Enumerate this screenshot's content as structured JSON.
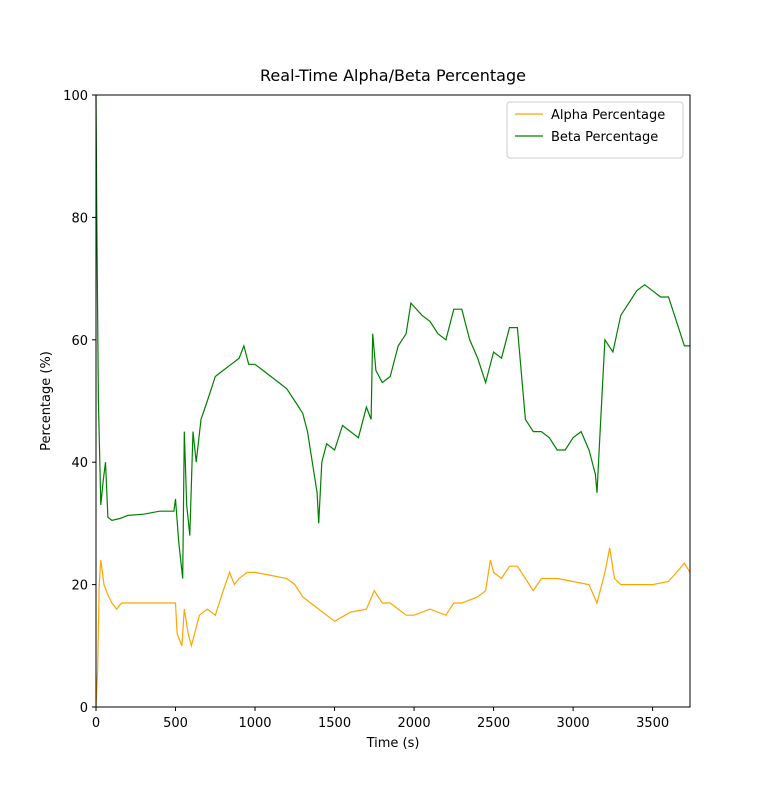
{
  "chart_data": {
    "type": "line",
    "title": "Real-Time Alpha/Beta Percentage",
    "x_label": "Time (s)",
    "y_label": "Percentage (%)",
    "xlim": [
      0,
      3735
    ],
    "ylim": [
      0,
      100
    ],
    "xticks": [
      0,
      500,
      1000,
      1500,
      2000,
      2500,
      3000,
      3500
    ],
    "yticks": [
      0,
      20,
      40,
      60,
      80,
      100
    ],
    "legend": "upper right",
    "series": [
      {
        "name": "Alpha Percentage",
        "color": "#ffa500",
        "x": [
          0,
          10,
          20,
          30,
          50,
          80,
          100,
          130,
          160,
          250,
          350,
          500,
          510,
          540,
          555,
          580,
          600,
          650,
          700,
          750,
          800,
          840,
          870,
          900,
          950,
          1000,
          1100,
          1200,
          1250,
          1300,
          1350,
          1400,
          1450,
          1500,
          1600,
          1700,
          1750,
          1800,
          1850,
          1900,
          1950,
          2000,
          2100,
          2200,
          2250,
          2300,
          2400,
          2450,
          2480,
          2500,
          2550,
          2600,
          2650,
          2700,
          2750,
          2800,
          2900,
          3000,
          3100,
          3150,
          3200,
          3230,
          3260,
          3300,
          3400,
          3500,
          3600,
          3650,
          3700,
          3735
        ],
        "values": [
          0,
          6,
          20,
          24,
          20,
          18,
          17,
          16,
          17,
          17,
          17,
          17,
          12,
          10,
          16,
          12,
          10,
          15,
          16,
          15,
          19,
          22,
          20,
          21,
          22,
          22,
          21.5,
          21,
          20,
          18,
          17,
          16,
          15,
          14,
          15.5,
          16,
          19,
          17,
          17,
          16,
          15,
          15,
          16,
          15,
          17,
          17,
          18,
          19,
          24,
          22,
          21,
          23,
          23,
          21,
          19,
          21,
          21,
          20.5,
          20,
          17,
          22,
          26,
          21,
          20,
          20,
          20,
          20.5,
          22,
          23.5,
          22
        ]
      },
      {
        "name": "Beta Percentage",
        "color": "#008000",
        "x": [
          0,
          5,
          15,
          30,
          45,
          60,
          75,
          100,
          150,
          200,
          300,
          400,
          490,
          500,
          520,
          545,
          555,
          570,
          590,
          610,
          630,
          660,
          700,
          750,
          800,
          850,
          900,
          930,
          960,
          1000,
          1050,
          1100,
          1150,
          1200,
          1250,
          1300,
          1330,
          1360,
          1390,
          1400,
          1420,
          1450,
          1500,
          1550,
          1600,
          1650,
          1700,
          1730,
          1740,
          1760,
          1800,
          1850,
          1900,
          1950,
          1980,
          2050,
          2100,
          2150,
          2200,
          2250,
          2300,
          2350,
          2400,
          2450,
          2500,
          2550,
          2600,
          2650,
          2700,
          2750,
          2800,
          2850,
          2900,
          2950,
          3000,
          3050,
          3100,
          3140,
          3150,
          3170,
          3200,
          3250,
          3300,
          3350,
          3400,
          3450,
          3500,
          3550,
          3600,
          3650,
          3700,
          3735
        ],
        "values": [
          100,
          80,
          50,
          33,
          37,
          40,
          31,
          30.5,
          30.8,
          31.3,
          31.5,
          32,
          32,
          34,
          27,
          21,
          45,
          33,
          28,
          45,
          40,
          47,
          50,
          54,
          55,
          56,
          57,
          59,
          56,
          56,
          55,
          54,
          53,
          52,
          50,
          48,
          45,
          40,
          35,
          30,
          40,
          43,
          42,
          46,
          45,
          44,
          49,
          47,
          61,
          55,
          53,
          54,
          59,
          61,
          66,
          64,
          63,
          61,
          60,
          65,
          65,
          60,
          57,
          53,
          58,
          57,
          62,
          62,
          47,
          45,
          45,
          44,
          42,
          42,
          44,
          45,
          42,
          38,
          35,
          45,
          60,
          58,
          64,
          66,
          68,
          69,
          68,
          67,
          67,
          63,
          59,
          59
        ]
      }
    ]
  }
}
